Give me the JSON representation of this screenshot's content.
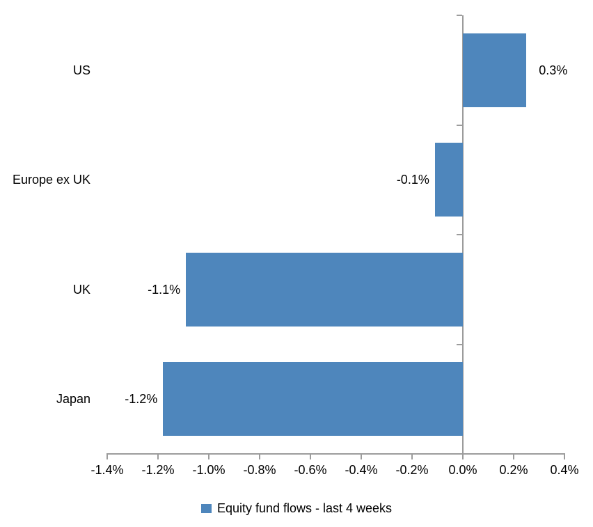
{
  "chart_data": {
    "type": "bar",
    "orientation": "horizontal",
    "title": "",
    "xlabel": "",
    "ylabel": "",
    "categories": [
      "US",
      "Europe ex UK",
      "UK",
      "Japan"
    ],
    "series": [
      {
        "name": "Equity fund flows - last 4 weeks",
        "values": [
          0.3,
          -0.1,
          -1.1,
          -1.2
        ],
        "plot_values": [
          0.25,
          -0.11,
          -1.09,
          -1.18
        ],
        "value_labels": [
          "0.3%",
          "-0.1%",
          "-1.1%",
          "-1.2%"
        ],
        "color": "#4E86BC"
      }
    ],
    "xlim": [
      -1.4,
      0.4
    ],
    "x_ticks": [
      -1.4,
      -1.2,
      -1.0,
      -0.8,
      -0.6,
      -0.4,
      -0.2,
      0.0,
      0.2,
      0.4
    ],
    "x_tick_labels": [
      "-1.4%",
      "-1.2%",
      "-1.0%",
      "-0.8%",
      "-0.6%",
      "-0.4%",
      "-0.2%",
      "0.0%",
      "0.2%",
      "0.4%"
    ],
    "grid": false,
    "legend": {
      "position": "bottom",
      "entries": [
        "Equity fund flows - last 4 weeks"
      ]
    },
    "colors": {
      "bar": "#4E86BC",
      "axis": "#9C9C9C",
      "text": "#000000",
      "background": "#FFFFFF"
    }
  }
}
